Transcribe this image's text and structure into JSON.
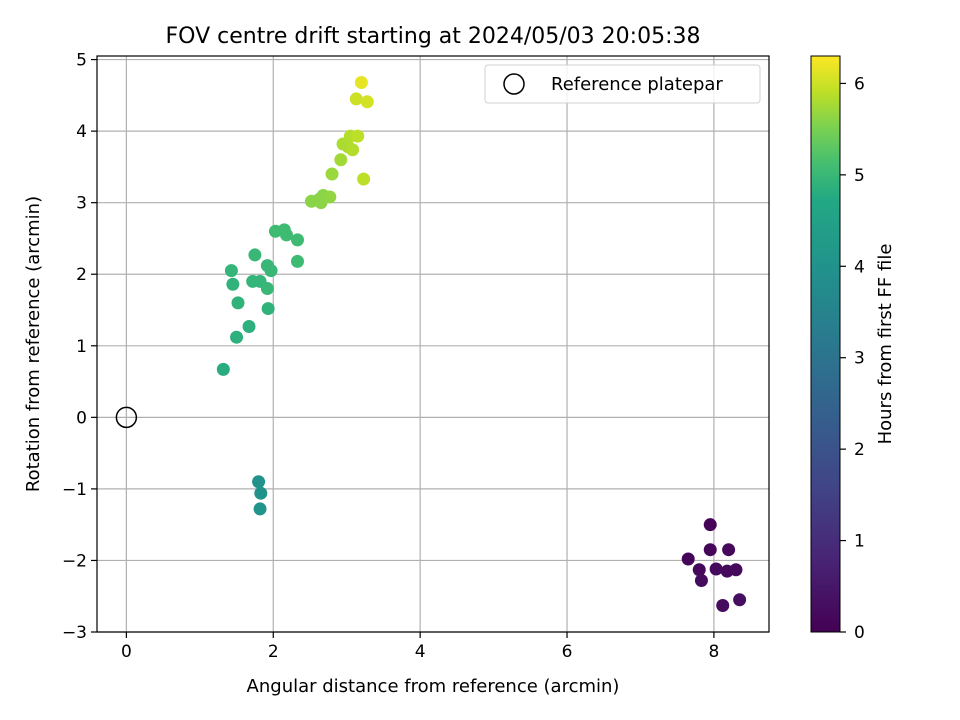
{
  "chart_data": {
    "type": "scatter",
    "title": "FOV centre drift starting at 2024/05/03 20:05:38",
    "xlabel": "Angular distance from reference (arcmin)",
    "ylabel": "Rotation from reference (arcmin)",
    "xlim": [
      -0.4,
      8.75
    ],
    "ylim": [
      -3,
      5.05
    ],
    "xticks": [
      0,
      2,
      4,
      6,
      8
    ],
    "yticks": [
      -3,
      -2,
      -1,
      0,
      1,
      2,
      3,
      4,
      5
    ],
    "grid": true,
    "legend": {
      "position": "top-right",
      "entries": [
        "Reference platepar"
      ]
    },
    "colorbar": {
      "label": "Hours from first FF file",
      "min": 0,
      "max": 6.3,
      "ticks": [
        0,
        1,
        2,
        3,
        4,
        5,
        6
      ],
      "colormap": "viridis"
    },
    "reference_point": {
      "x": 0,
      "y": 0,
      "label": "Reference platepar"
    },
    "points": [
      {
        "x": 7.95,
        "y": -1.5,
        "c": 0.05
      },
      {
        "x": 7.65,
        "y": -1.98,
        "c": 0.1
      },
      {
        "x": 7.95,
        "y": -1.85,
        "c": 0.1
      },
      {
        "x": 8.2,
        "y": -1.85,
        "c": 0.15
      },
      {
        "x": 7.8,
        "y": -2.13,
        "c": 0.15
      },
      {
        "x": 8.03,
        "y": -2.12,
        "c": 0.2
      },
      {
        "x": 8.18,
        "y": -2.15,
        "c": 0.2
      },
      {
        "x": 8.3,
        "y": -2.13,
        "c": 0.2
      },
      {
        "x": 7.83,
        "y": -2.28,
        "c": 0.25
      },
      {
        "x": 8.12,
        "y": -2.63,
        "c": 0.25
      },
      {
        "x": 8.35,
        "y": -2.55,
        "c": 0.3
      },
      {
        "x": 1.8,
        "y": -0.9,
        "c": 4.0
      },
      {
        "x": 1.83,
        "y": -1.06,
        "c": 4.0
      },
      {
        "x": 1.82,
        "y": -1.28,
        "c": 4.05
      },
      {
        "x": 1.32,
        "y": 0.67,
        "c": 4.8
      },
      {
        "x": 1.5,
        "y": 1.12,
        "c": 4.85
      },
      {
        "x": 1.67,
        "y": 1.27,
        "c": 4.85
      },
      {
        "x": 1.52,
        "y": 1.6,
        "c": 4.9
      },
      {
        "x": 1.93,
        "y": 1.52,
        "c": 4.9
      },
      {
        "x": 1.45,
        "y": 1.86,
        "c": 4.9
      },
      {
        "x": 1.43,
        "y": 2.05,
        "c": 4.95
      },
      {
        "x": 1.72,
        "y": 1.9,
        "c": 4.95
      },
      {
        "x": 1.82,
        "y": 1.9,
        "c": 4.95
      },
      {
        "x": 1.92,
        "y": 1.8,
        "c": 5.0
      },
      {
        "x": 1.75,
        "y": 2.27,
        "c": 5.0
      },
      {
        "x": 1.92,
        "y": 2.12,
        "c": 5.0
      },
      {
        "x": 1.97,
        "y": 2.05,
        "c": 5.0
      },
      {
        "x": 2.03,
        "y": 2.6,
        "c": 5.05
      },
      {
        "x": 2.15,
        "y": 2.62,
        "c": 5.05
      },
      {
        "x": 2.18,
        "y": 2.55,
        "c": 5.05
      },
      {
        "x": 2.33,
        "y": 2.48,
        "c": 5.05
      },
      {
        "x": 2.33,
        "y": 2.18,
        "c": 5.05
      },
      {
        "x": 2.52,
        "y": 3.02,
        "c": 5.6
      },
      {
        "x": 2.63,
        "y": 3.05,
        "c": 5.6
      },
      {
        "x": 2.68,
        "y": 3.1,
        "c": 5.6
      },
      {
        "x": 2.65,
        "y": 3.0,
        "c": 5.6
      },
      {
        "x": 2.77,
        "y": 3.08,
        "c": 5.65
      },
      {
        "x": 2.8,
        "y": 3.4,
        "c": 5.7
      },
      {
        "x": 2.92,
        "y": 3.6,
        "c": 5.75
      },
      {
        "x": 2.95,
        "y": 3.82,
        "c": 5.8
      },
      {
        "x": 3.02,
        "y": 3.78,
        "c": 5.8
      },
      {
        "x": 3.08,
        "y": 3.74,
        "c": 5.85
      },
      {
        "x": 3.05,
        "y": 3.93,
        "c": 5.85
      },
      {
        "x": 3.15,
        "y": 3.93,
        "c": 5.9
      },
      {
        "x": 3.23,
        "y": 3.33,
        "c": 5.9
      },
      {
        "x": 3.13,
        "y": 4.45,
        "c": 6.0
      },
      {
        "x": 3.28,
        "y": 4.41,
        "c": 6.05
      },
      {
        "x": 3.2,
        "y": 4.68,
        "c": 6.15
      }
    ]
  }
}
